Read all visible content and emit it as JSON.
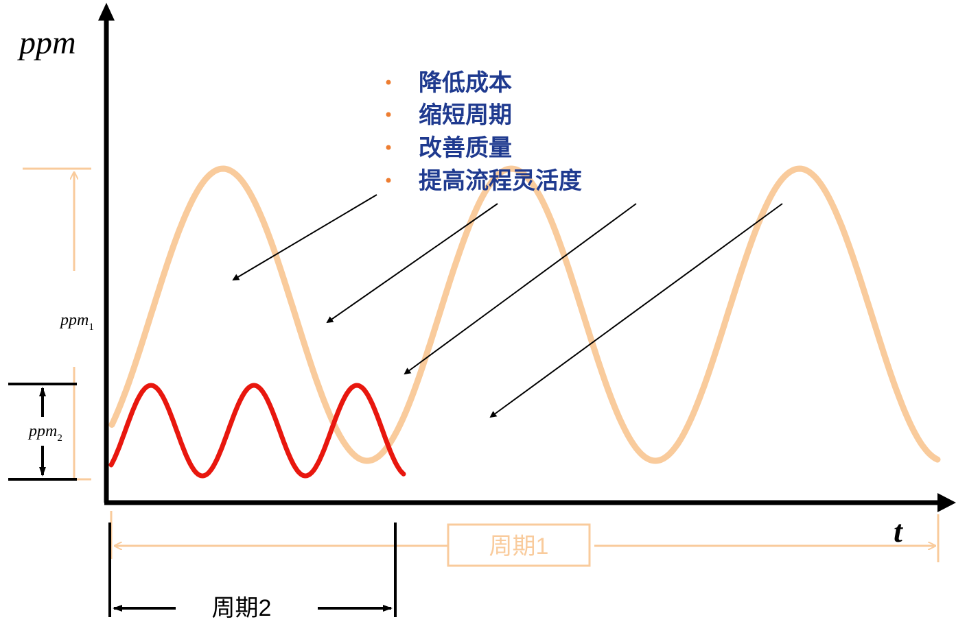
{
  "y_axis_label": "ppm",
  "x_axis_label": "t",
  "ppm1_label": {
    "base": "ppm",
    "sub": "1"
  },
  "ppm2_label": {
    "base": "ppm",
    "sub": "2"
  },
  "bullets": [
    "降低成本",
    "缩短周期",
    "改善质量",
    "提高流程灵活度"
  ],
  "period1_label": "周期1",
  "period2_label": "周期2",
  "colors": {
    "large_wave": "#f9cb9c",
    "small_wave": "#e8170e",
    "axis": "#000000",
    "bullet_text": "#1f3a8f",
    "bullet_dot": "#ed7d31",
    "period1": "#f9cb9c"
  }
}
